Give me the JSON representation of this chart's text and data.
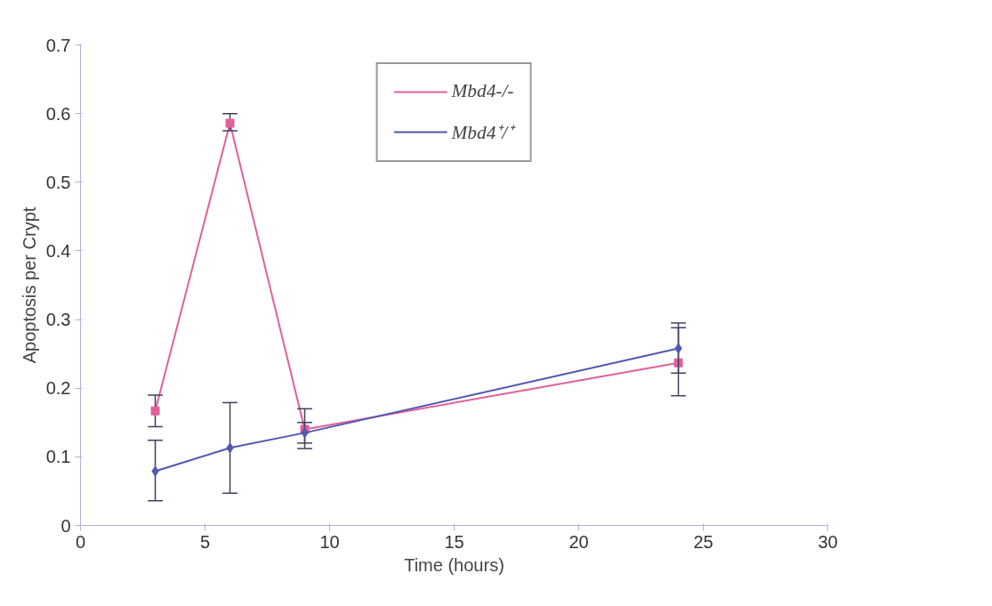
{
  "chart_data": {
    "type": "line",
    "xlabel": "Time (hours)",
    "ylabel": "Apoptosis per Crypt",
    "x": [
      3,
      6,
      9,
      24
    ],
    "series": [
      {
        "name": "Mbd4-/-",
        "color": "#e0609a",
        "marker": "square",
        "values": [
          0.167,
          0.586,
          0.14,
          0.237
        ],
        "errors": [
          [
            0.144,
            0.19
          ],
          [
            0.575,
            0.6
          ],
          [
            0.112,
            0.17
          ],
          [
            0.189,
            0.288
          ]
        ]
      },
      {
        "name": "Mbd4⁺/⁺",
        "color": "#5058b0",
        "marker": "diamond",
        "values": [
          0.079,
          0.113,
          0.135,
          0.258
        ],
        "errors": [
          [
            0.036,
            0.124
          ],
          [
            0.047,
            0.179
          ],
          [
            0.12,
            0.15
          ],
          [
            0.222,
            0.295
          ]
        ]
      }
    ],
    "xlim": [
      0,
      30
    ],
    "xticks": [
      0,
      5,
      10,
      15,
      20,
      25,
      30
    ],
    "ylim": [
      0,
      0.7
    ],
    "yticks": [
      0,
      0.1,
      0.2,
      0.3,
      0.4,
      0.5,
      0.6,
      0.7
    ],
    "grid": false,
    "legend": "top"
  }
}
